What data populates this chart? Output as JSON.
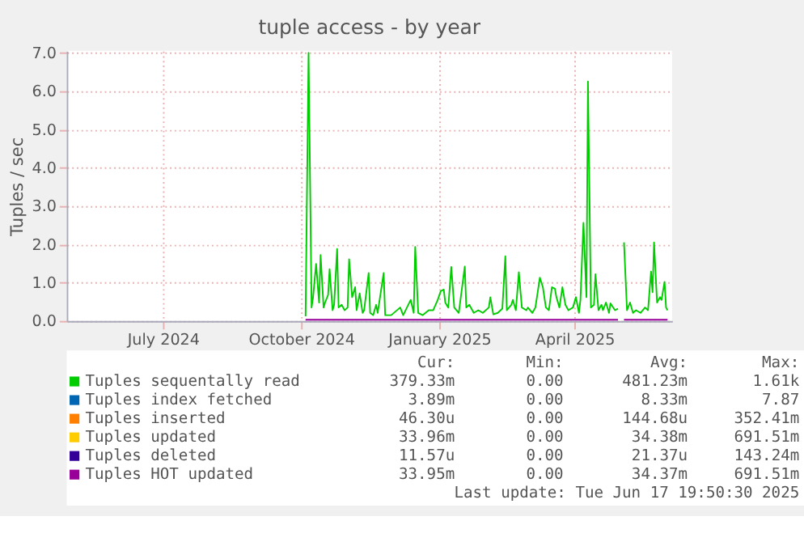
{
  "chart_data": {
    "type": "line",
    "title": "tuple access - by year",
    "ylabel": "Tuples / sec",
    "xlim": [
      "2024-04-28",
      "2025-06-05"
    ],
    "xticks": [
      {
        "value": "2024-07-01",
        "label": "July 2024"
      },
      {
        "value": "2024-10-01",
        "label": "October 2024"
      },
      {
        "value": "2025-01-01",
        "label": "January 2025"
      },
      {
        "value": "2025-04-01",
        "label": "April 2025"
      }
    ],
    "ylim": [
      0,
      7.05
    ],
    "yticks": [
      {
        "value": 0,
        "label": "0.0"
      },
      {
        "value": 1,
        "label": "1.0"
      },
      {
        "value": 2,
        "label": "2.0"
      },
      {
        "value": 3,
        "label": "3.0"
      },
      {
        "value": 4,
        "label": "4.0"
      },
      {
        "value": 5,
        "label": "5.0"
      },
      {
        "value": 6,
        "label": "6.0"
      },
      {
        "value": 7,
        "label": "7.0"
      }
    ],
    "grid": true,
    "legend": "bottom",
    "series": [
      {
        "name": "Tuples sequentally read",
        "color": "#00cc00",
        "x": [
          "2024-10-04",
          "2024-10-06",
          "2024-10-08",
          "2024-10-09",
          "2024-10-11",
          "2024-10-13",
          "2024-10-14",
          "2024-10-16",
          "2024-10-17",
          "2024-10-19",
          "2024-10-20",
          "2024-10-22",
          "2024-10-23",
          "2024-10-25",
          "2024-10-26",
          "2024-10-28",
          "2024-10-30",
          "2024-11-01",
          "2024-11-02",
          "2024-11-04",
          "2024-11-06",
          "2024-11-07",
          "2024-11-09",
          "2024-11-11",
          "2024-11-12",
          "2024-11-15",
          "2024-11-16",
          "2024-11-18",
          "2024-11-20",
          "2024-11-21",
          "2024-11-25",
          "2024-11-26",
          "2024-11-30",
          "2024-12-06",
          "2024-12-08",
          "2024-12-13",
          "2024-12-15",
          "2024-12-16",
          "2024-12-18",
          "2024-12-21",
          "2024-12-25",
          "2024-12-28",
          "2024-12-31",
          "2025-01-02",
          "2025-01-04",
          "2025-01-05",
          "2025-01-07",
          "2025-01-09",
          "2025-01-11",
          "2025-01-14",
          "2025-01-18",
          "2025-01-19",
          "2025-01-21",
          "2025-01-24",
          "2025-01-27",
          "2025-01-30",
          "2025-02-03",
          "2025-02-04",
          "2025-02-06",
          "2025-02-09",
          "2025-02-12",
          "2025-02-14",
          "2025-02-15",
          "2025-02-18",
          "2025-02-19",
          "2025-02-21",
          "2025-02-23",
          "2025-02-25",
          "2025-02-28",
          "2025-03-01",
          "2025-03-04",
          "2025-03-06",
          "2025-03-09",
          "2025-03-11",
          "2025-03-13",
          "2025-03-15",
          "2025-03-17",
          "2025-03-19",
          "2025-03-20",
          "2025-03-22",
          "2025-03-24",
          "2025-03-26",
          "2025-03-28",
          "2025-03-31",
          "2025-04-02",
          "2025-04-04",
          "2025-04-05",
          "2025-04-07",
          "2025-04-09",
          "2025-04-10",
          "2025-04-12",
          "2025-04-14",
          "2025-04-15",
          "2025-04-17",
          "2025-04-19",
          "2025-04-20",
          "2025-04-22",
          "2025-04-24",
          "2025-04-25",
          "2025-04-28",
          "2025-04-30",
          "2025-05-02",
          "2025-05-04",
          "2025-05-06",
          "2025-05-08",
          "2025-05-10",
          "2025-05-12",
          "2025-05-15",
          "2025-05-18",
          "2025-05-20",
          "2025-05-22",
          "2025-05-23",
          "2025-05-24",
          "2025-05-26",
          "2025-05-28",
          "2025-05-29",
          "2025-05-31",
          "2025-06-01",
          "2025-06-02"
        ],
        "values": [
          0.12,
          7.0,
          0.35,
          0.62,
          1.49,
          0.48,
          1.72,
          0.35,
          0.48,
          0.68,
          1.35,
          0.28,
          0.42,
          1.88,
          0.35,
          0.42,
          0.28,
          0.35,
          1.61,
          0.62,
          0.88,
          0.28,
          0.72,
          0.21,
          0.28,
          1.25,
          0.21,
          0.15,
          0.42,
          0.21,
          1.25,
          0.15,
          0.15,
          0.35,
          0.15,
          0.55,
          0.21,
          1.93,
          0.21,
          0.15,
          0.28,
          0.28,
          0.55,
          0.78,
          0.82,
          0.48,
          0.35,
          1.41,
          0.35,
          0.21,
          1.42,
          0.35,
          0.42,
          0.21,
          0.28,
          0.21,
          0.35,
          0.62,
          0.17,
          0.21,
          0.32,
          1.69,
          0.28,
          0.42,
          0.55,
          0.28,
          1.27,
          0.35,
          0.28,
          0.35,
          0.21,
          0.35,
          1.13,
          0.88,
          0.35,
          0.28,
          0.88,
          0.84,
          0.62,
          0.35,
          0.88,
          0.42,
          0.28,
          0.35,
          0.62,
          0.21,
          0.55,
          2.56,
          0.62,
          6.25,
          0.35,
          0.42,
          1.22,
          0.28,
          0.42,
          0.28,
          0.48,
          0.21,
          0.46,
          0.28,
          0.32,
          null,
          2.05,
          0.28,
          0.48,
          0.21,
          0.28,
          0.21,
          0.35,
          0.28,
          1.29,
          0.75,
          2.05,
          0.48,
          0.62,
          0.55,
          1.02,
          0.35,
          0.28
        ]
      },
      {
        "name": "Tuples index fetched",
        "color": "#0066b3"
      },
      {
        "name": "Tuples inserted",
        "color": "#ff8000"
      },
      {
        "name": "Tuples updated",
        "color": "#ffcc00"
      },
      {
        "name": "Tuples deleted",
        "color": "#330099"
      },
      {
        "name": "Tuples HOT updated",
        "color": "#990099",
        "x": [
          "2024-10-04",
          "2025-04-30",
          "2025-05-02",
          "2025-05-04",
          "2025-06-02"
        ],
        "values": [
          0.03,
          0.03,
          null,
          0.03,
          0.03
        ]
      }
    ],
    "annotations": [
      "Cur:",
      "Min:",
      "Avg:",
      "Max:",
      "379.33m",
      "0.00",
      "481.23m",
      "1.61k",
      "3.89m",
      "0.00",
      "8.33m",
      "7.87",
      "46.30u",
      "0.00",
      "144.68u",
      "352.41m",
      "33.96m",
      "0.00",
      "34.38m",
      "691.51m",
      "11.57u",
      "0.00",
      "21.37u",
      "143.24m",
      "33.95m",
      "0.00",
      "34.37m",
      "691.51m",
      "Last update: Tue Jun 17 19:50:30 2025"
    ]
  }
}
